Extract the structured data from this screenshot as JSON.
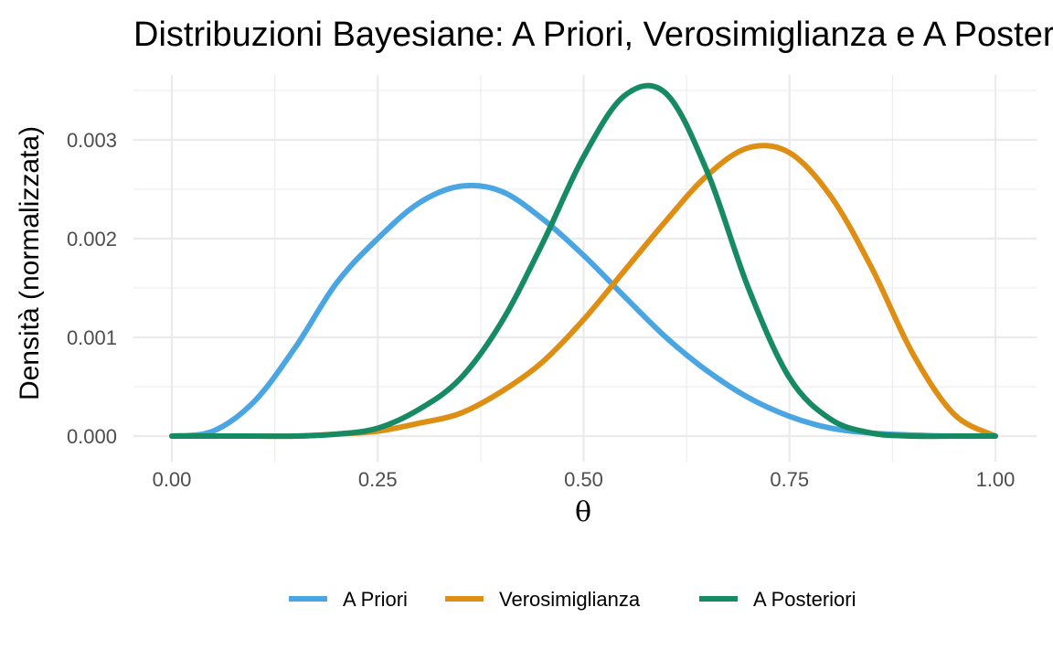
{
  "chart_data": {
    "type": "line",
    "title": "Distribuzioni Bayesiane: A Priori, Verosimiglianza e A Posteriori",
    "xlabel": "θ",
    "ylabel": "Densità (normalizzata)",
    "xlim": [
      0,
      1
    ],
    "ylim": [
      0,
      0.0036
    ],
    "xticks": [
      "0.00",
      "0.25",
      "0.50",
      "0.75",
      "1.00"
    ],
    "yticks": [
      "0.000",
      "0.001",
      "0.002",
      "0.003"
    ],
    "grid": true,
    "legend_position": "bottom",
    "x": [
      0.0,
      0.05,
      0.1,
      0.15,
      0.2,
      0.25,
      0.3,
      0.35,
      0.4,
      0.45,
      0.5,
      0.55,
      0.6,
      0.65,
      0.7,
      0.75,
      0.8,
      0.85,
      0.9,
      0.95,
      1.0
    ],
    "series": [
      {
        "name": "A Priori",
        "color": "#4aa6e3",
        "values": [
          0.0,
          5e-05,
          0.00035,
          0.0009,
          0.00155,
          0.002,
          0.00236,
          0.00253,
          0.00248,
          0.0022,
          0.00183,
          0.00141,
          0.001,
          0.00066,
          0.00039,
          0.0002,
          8e-05,
          3e-05,
          1e-05,
          0.0,
          0.0
        ]
      },
      {
        "name": "Verosimiglianza",
        "color": "#df8e14",
        "values": [
          0.0,
          0.0,
          0.0,
          0.0,
          2e-05,
          5e-05,
          0.00013,
          0.00023,
          0.00045,
          0.00075,
          0.00118,
          0.00168,
          0.00218,
          0.00264,
          0.00292,
          0.00287,
          0.00243,
          0.0017,
          0.00083,
          0.00022,
          0.0
        ]
      },
      {
        "name": "A Posteriori",
        "color": "#168a62",
        "values": [
          0.0,
          0.0,
          0.0,
          0.0,
          2e-05,
          8e-05,
          0.00027,
          0.00058,
          0.00115,
          0.00195,
          0.00283,
          0.00345,
          0.00347,
          0.00268,
          0.0015,
          0.00059,
          0.00017,
          3e-05,
          0.0,
          0.0,
          0.0
        ]
      }
    ]
  }
}
